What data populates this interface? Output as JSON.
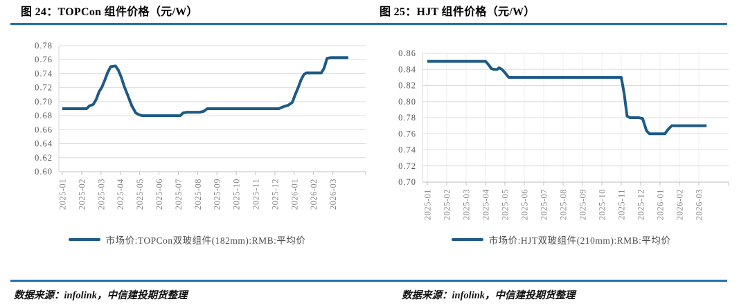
{
  "panels": [
    {
      "source": "数据来源：infolink，中信建投期货整理"
    },
    {
      "source": "数据来源：infolink，中信建投期货整理"
    }
  ],
  "colors": {
    "series_line": "#1d5a86",
    "rule_blue": "#2371ad",
    "gridline": "#dcdcdc",
    "axis_line": "#bfbfbf",
    "y_tick_text": "#595959",
    "x_tick_text": "#8a8a8a"
  },
  "chart_data": [
    {
      "type": "line",
      "title": "图 24：TOPCon 组件价格（元/W）",
      "xlabel": "",
      "ylabel": "",
      "ylim": [
        0.6,
        0.78
      ],
      "y_ticks": [
        0.6,
        0.62,
        0.64,
        0.66,
        0.68,
        0.7,
        0.72,
        0.74,
        0.76,
        0.78
      ],
      "x_tick_labels": [
        "2025-01",
        "2025-02",
        "2025-03",
        "2025-04",
        "2025-05",
        "2025-06",
        "2025-07",
        "2025-08",
        "2025-09",
        "2025-10",
        "2025-11",
        "2025-12",
        "2026-01",
        "2026-02",
        "2026-03"
      ],
      "grid": "horizontal",
      "legend_position": "bottom",
      "series": [
        {
          "name": "市场价:TOPCon双玻组件(182mm):RMB:平均价",
          "color": "#1d5a86",
          "points": [
            [
              0,
              0.69
            ],
            [
              0.6,
              0.69
            ],
            [
              1.25,
              0.69
            ],
            [
              1.4,
              0.694
            ],
            [
              1.6,
              0.696
            ],
            [
              1.75,
              0.703
            ],
            [
              1.9,
              0.714
            ],
            [
              2.05,
              0.721
            ],
            [
              2.2,
              0.731
            ],
            [
              2.35,
              0.742
            ],
            [
              2.5,
              0.75
            ],
            [
              2.75,
              0.751
            ],
            [
              2.9,
              0.745
            ],
            [
              3.05,
              0.735
            ],
            [
              3.2,
              0.722
            ],
            [
              3.4,
              0.708
            ],
            [
              3.6,
              0.694
            ],
            [
              3.8,
              0.684
            ],
            [
              4.0,
              0.681
            ],
            [
              4.15,
              0.68
            ],
            [
              5.0,
              0.68
            ],
            [
              6.1,
              0.68
            ],
            [
              6.25,
              0.684
            ],
            [
              6.45,
              0.685
            ],
            [
              7.1,
              0.685
            ],
            [
              7.3,
              0.686
            ],
            [
              7.5,
              0.69
            ],
            [
              8.5,
              0.69
            ],
            [
              9.5,
              0.69
            ],
            [
              10.5,
              0.69
            ],
            [
              11.2,
              0.69
            ],
            [
              11.45,
              0.693
            ],
            [
              11.7,
              0.695
            ],
            [
              11.9,
              0.699
            ],
            [
              12.05,
              0.71
            ],
            [
              12.2,
              0.72
            ],
            [
              12.35,
              0.731
            ],
            [
              12.5,
              0.739
            ],
            [
              12.62,
              0.741
            ],
            [
              13.4,
              0.741
            ],
            [
              13.55,
              0.748
            ],
            [
              13.7,
              0.762
            ],
            [
              13.9,
              0.763
            ],
            [
              14.3,
              0.763
            ],
            [
              14.8,
              0.763
            ]
          ]
        }
      ]
    },
    {
      "type": "line",
      "title": "图 25：HJT 组件价格（元/W）",
      "xlabel": "",
      "ylabel": "",
      "ylim": [
        0.7,
        0.86
      ],
      "y_ticks": [
        0.7,
        0.72,
        0.74,
        0.76,
        0.78,
        0.8,
        0.82,
        0.84,
        0.86
      ],
      "x_tick_labels": [
        "2025-01",
        "2025-02",
        "2025-03",
        "2025-04",
        "2025-05",
        "2025-06",
        "2025-07",
        "2025-08",
        "2025-09",
        "2025-10",
        "2025-11",
        "2025-12",
        "2026-01",
        "2026-02",
        "2026-03"
      ],
      "grid": "horizontal+vertical",
      "legend_position": "bottom",
      "series": [
        {
          "name": "市场价:HJT双玻组件(210mm):RMB:平均价",
          "color": "#1d5a86",
          "points": [
            [
              0,
              0.85
            ],
            [
              0.8,
              0.85
            ],
            [
              1.6,
              0.85
            ],
            [
              2.4,
              0.85
            ],
            [
              3.0,
              0.85
            ],
            [
              3.15,
              0.846
            ],
            [
              3.3,
              0.841
            ],
            [
              3.45,
              0.84
            ],
            [
              3.6,
              0.84
            ],
            [
              3.7,
              0.842
            ],
            [
              3.85,
              0.84
            ],
            [
              4.0,
              0.836
            ],
            [
              4.2,
              0.83
            ],
            [
              5.0,
              0.83
            ],
            [
              6.0,
              0.83
            ],
            [
              7.0,
              0.83
            ],
            [
              8.0,
              0.83
            ],
            [
              9.0,
              0.83
            ],
            [
              10.0,
              0.83
            ],
            [
              10.15,
              0.81
            ],
            [
              10.3,
              0.782
            ],
            [
              10.45,
              0.78
            ],
            [
              10.9,
              0.78
            ],
            [
              11.1,
              0.779
            ],
            [
              11.3,
              0.764
            ],
            [
              11.45,
              0.76
            ],
            [
              11.9,
              0.76
            ],
            [
              12.25,
              0.76
            ],
            [
              12.4,
              0.765
            ],
            [
              12.6,
              0.77
            ],
            [
              13.2,
              0.77
            ],
            [
              14.0,
              0.77
            ],
            [
              14.4,
              0.77
            ]
          ]
        }
      ]
    }
  ]
}
